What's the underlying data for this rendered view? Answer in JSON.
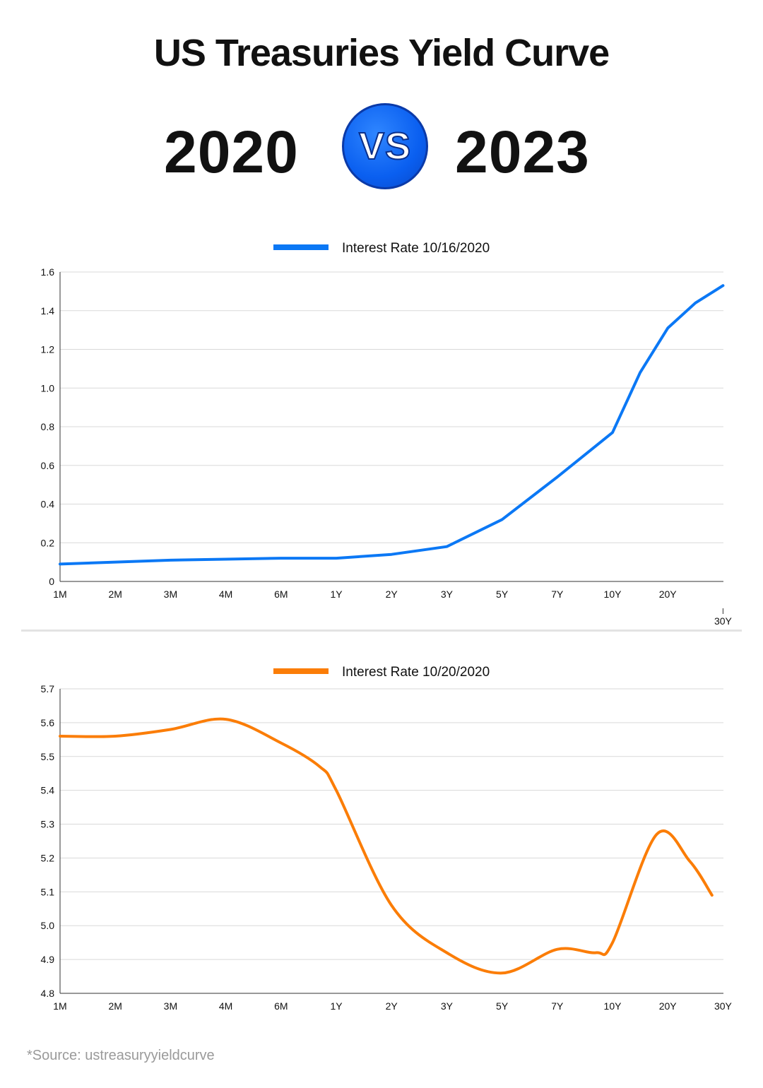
{
  "header": {
    "title": "US Treasuries Yield Curve",
    "year_left": "2020",
    "vs_label": "VS",
    "year_right": "2023"
  },
  "colors": {
    "series_2020": "#0b78f5",
    "series_2023": "#fb7d07",
    "badge": "#0a5ff0"
  },
  "chart_data": [
    {
      "type": "line",
      "legend": "Interest Rate  10/16/2020",
      "categories": [
        "1M",
        "2M",
        "3M",
        "4M",
        "6M",
        "1Y",
        "2Y",
        "3Y",
        "5Y",
        "7Y",
        "10Y",
        "20Y",
        "30Y"
      ],
      "series": [
        {
          "name": "Interest Rate  10/16/2020",
          "x": [
            0,
            1,
            2,
            3,
            4,
            5,
            6,
            7,
            8,
            9,
            10,
            10.5,
            11,
            11.5,
            12
          ],
          "values": [
            0.09,
            0.1,
            0.11,
            0.115,
            0.12,
            0.12,
            0.14,
            0.18,
            0.32,
            0.54,
            0.77,
            1.08,
            1.31,
            1.44,
            1.53
          ]
        }
      ],
      "ylim": [
        0,
        1.6
      ],
      "yticks": [
        "0",
        "0.2",
        "0.4",
        "0.6",
        "0.8",
        "1.0",
        "1.2",
        "1.4",
        "1.6"
      ],
      "title": "",
      "xlabel": "",
      "ylabel": ""
    },
    {
      "type": "line",
      "legend": "Interest Rate  10/20/2020",
      "categories": [
        "1M",
        "2M",
        "3M",
        "4M",
        "6M",
        "1Y",
        "2Y",
        "3Y",
        "5Y",
        "7Y",
        "10Y",
        "20Y",
        "30Y"
      ],
      "series": [
        {
          "name": "Interest Rate  10/20/2020",
          "x": [
            0,
            1,
            2,
            3,
            4,
            4.7,
            5,
            6,
            7,
            8,
            9,
            9.7,
            10,
            10.8,
            11.4,
            11.8
          ],
          "values": [
            5.56,
            5.56,
            5.58,
            5.61,
            5.54,
            5.47,
            5.4,
            5.06,
            4.92,
            4.86,
            4.93,
            4.92,
            4.95,
            5.27,
            5.19,
            5.09
          ]
        }
      ],
      "ylim": [
        4.8,
        5.7
      ],
      "yticks": [
        "4.8",
        "4.9",
        "5.0",
        "5.1",
        "5.2",
        "5.3",
        "5.4",
        "5.5",
        "5.6",
        "5.7"
      ],
      "title": "",
      "xlabel": "",
      "ylabel": ""
    }
  ],
  "footer": {
    "source": "*Source: ustreasuryyieldcurve"
  }
}
